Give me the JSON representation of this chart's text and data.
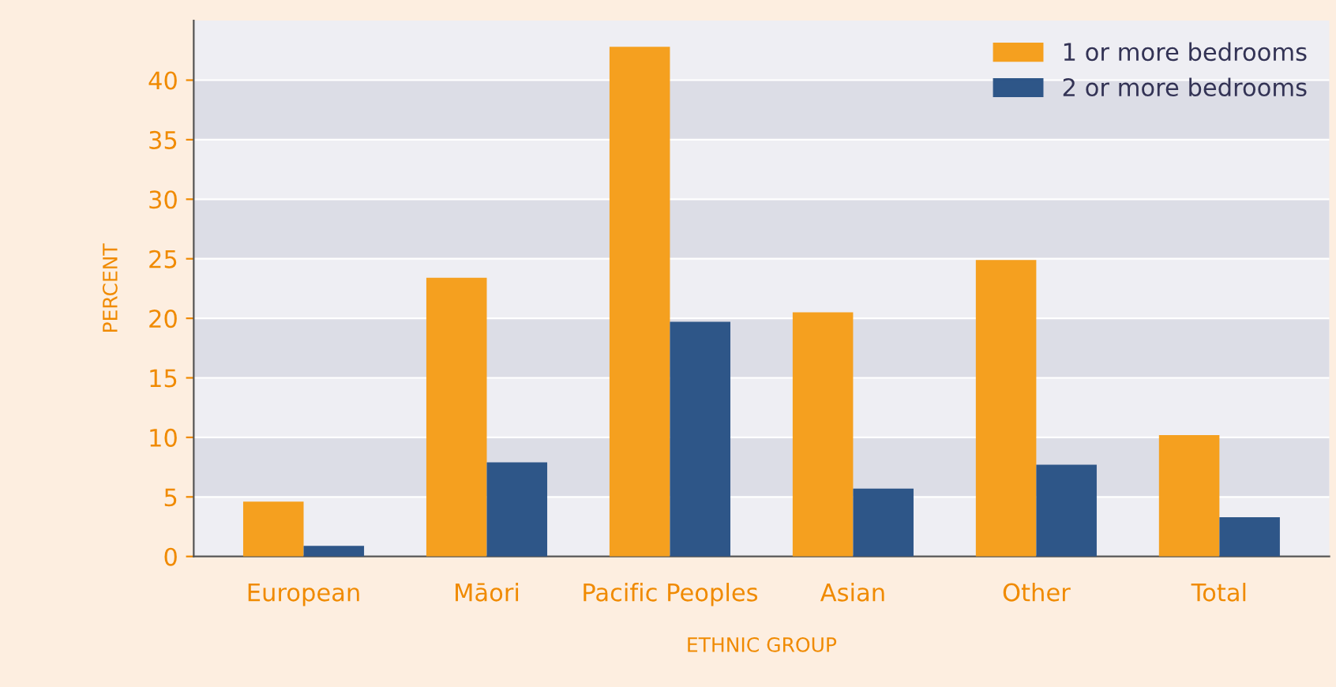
{
  "chart_data": {
    "type": "bar",
    "xlabel": "ETHNIC GROUP",
    "ylabel": "PERCENT",
    "categories": [
      "European",
      "Māori",
      "Pacific Peoples",
      "Asian",
      "Other",
      "Total"
    ],
    "series": [
      {
        "name": "1 or more bedrooms",
        "color": "#f5a01f",
        "values": [
          4.6,
          23.4,
          42.8,
          20.5,
          24.9,
          10.2
        ]
      },
      {
        "name": "2 or more bedrooms",
        "color": "#2e5688",
        "values": [
          0.9,
          7.9,
          19.7,
          5.7,
          7.7,
          3.3
        ]
      }
    ],
    "ylim": [
      0,
      45
    ],
    "yticks": [
      0,
      5,
      10,
      15,
      20,
      25,
      30,
      35,
      40
    ],
    "grid": "y",
    "legend": "top right",
    "bands": [
      {
        "axis": "y",
        "from": 5,
        "to": 10,
        "color": "#dcdde6"
      },
      {
        "axis": "y",
        "from": 15,
        "to": 20,
        "color": "#dcdde6"
      },
      {
        "axis": "y",
        "from": 25,
        "to": 30,
        "color": "#dcdde6"
      },
      {
        "axis": "y",
        "from": 35,
        "to": 40,
        "color": "#dcdde6"
      }
    ]
  }
}
